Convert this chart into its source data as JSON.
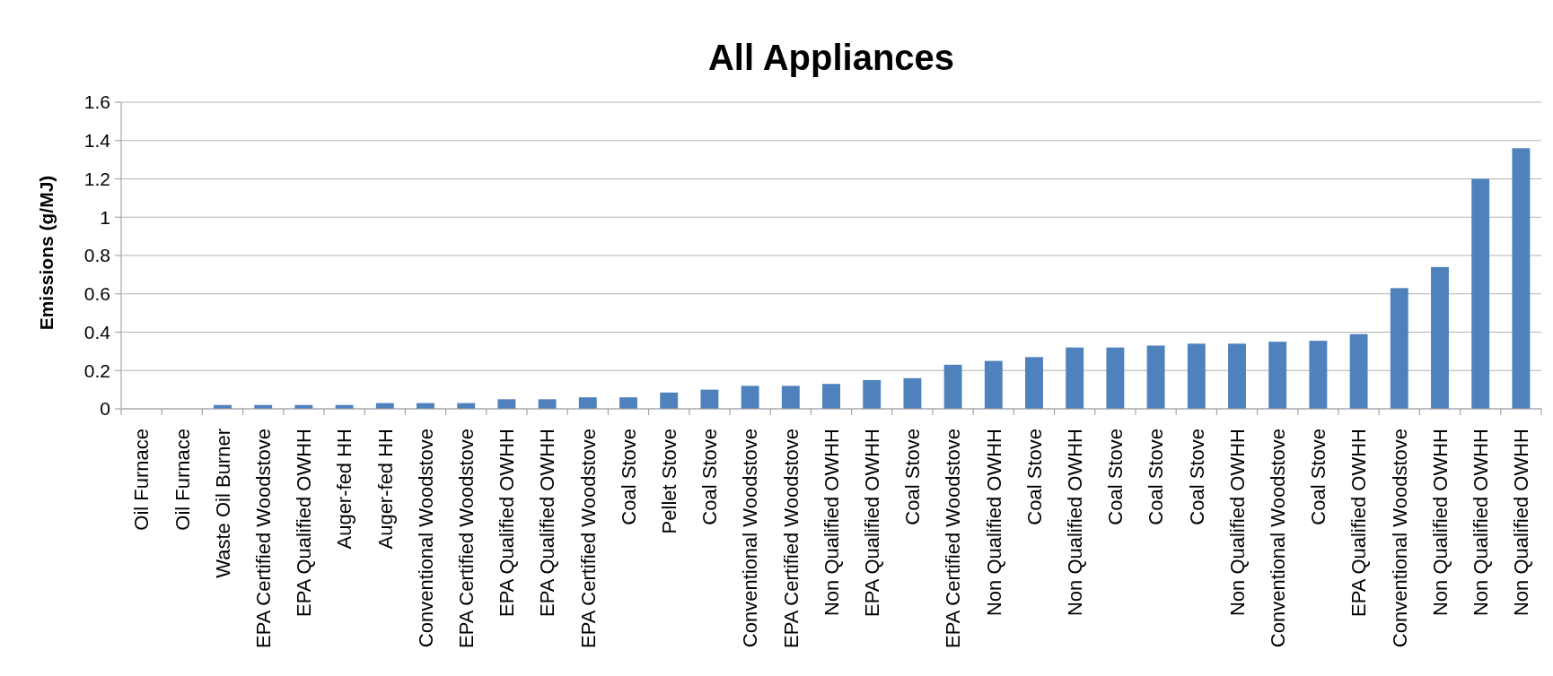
{
  "chart_data": {
    "type": "bar",
    "title": "All Appliances",
    "ylabel": "Emissions (g/MJ)",
    "categories": [
      "Oil Furnace",
      "Oil Furnace",
      "Waste Oil Burner",
      "EPA Certified Woodstove",
      "EPA Qualified OWHH",
      "Auger-fed HH",
      "Auger-fed HH",
      "Conventional Woodstove",
      "EPA Certified Woodstove",
      "EPA Qualified OWHH",
      "EPA Qualified OWHH",
      "EPA Certified Woodstove",
      "Coal Stove",
      "Pellet Stove",
      "Coal Stove",
      "Conventional Woodstove",
      "EPA Certified Woodstove",
      "Non Qualified OWHH",
      "EPA Qualified OWHH",
      "Coal Stove",
      "EPA Certified Woodstove",
      "Non Qualified OWHH",
      "Coal Stove",
      "Non Qualified OWHH",
      "Coal Stove",
      "Coal Stove",
      "Coal Stove",
      "Non Qualified OWHH",
      "Conventional Woodstove",
      "Coal Stove",
      "EPA Qualified OWHH",
      "Conventional Woodstove",
      "Non Qualified OWHH",
      "Non Qualified OWHH",
      "Non Qualified OWHH"
    ],
    "values": [
      0,
      0,
      0.02,
      0.02,
      0.02,
      0.02,
      0.03,
      0.03,
      0.03,
      0.05,
      0.05,
      0.06,
      0.06,
      0.085,
      0.1,
      0.12,
      0.12,
      0.13,
      0.15,
      0.16,
      0.23,
      0.25,
      0.27,
      0.32,
      0.32,
      0.33,
      0.34,
      0.34,
      0.35,
      0.355,
      0.39,
      0.63,
      0.74,
      1.2,
      1.36
    ],
    "color": "#4f81bd",
    "ylim": [
      0,
      1.6
    ],
    "yticks": [
      0,
      0.2,
      0.4,
      0.6,
      0.8,
      1,
      1.2,
      1.4,
      1.6
    ],
    "grid": "y"
  }
}
